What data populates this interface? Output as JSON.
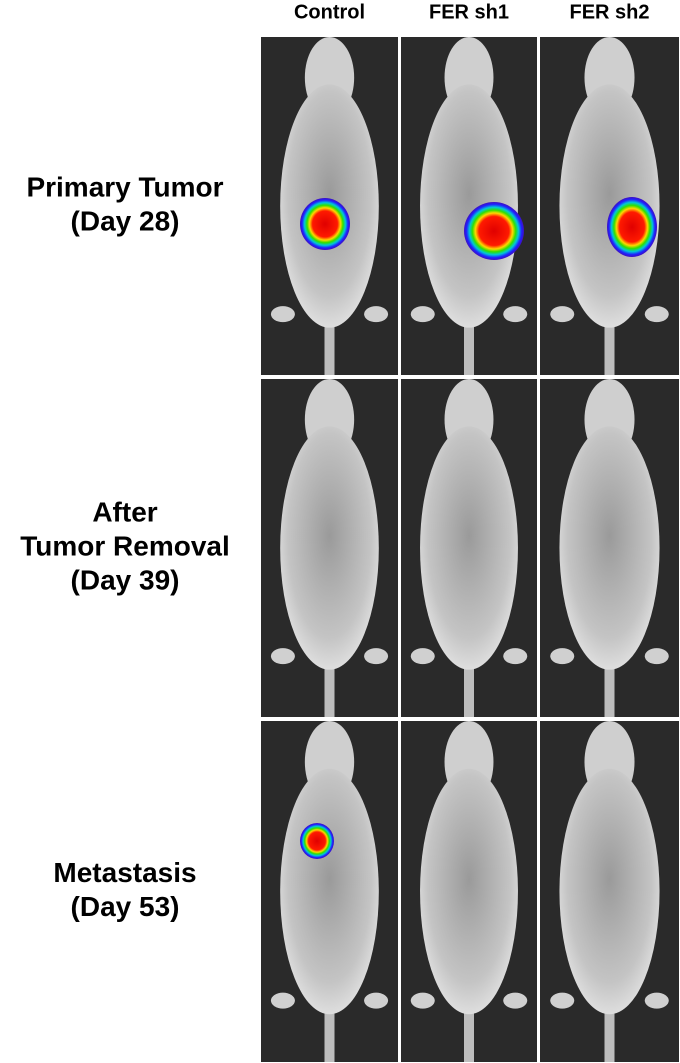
{
  "columns": [
    "Control",
    "FER sh1",
    "FER sh2"
  ],
  "rows": [
    {
      "label": [
        "Primary Tumor",
        "(Day 28)"
      ]
    },
    {
      "label": [
        "After",
        "Tumor Removal",
        "(Day 39)"
      ]
    },
    {
      "label": [
        "Metastasis",
        "(Day 53)"
      ]
    }
  ]
}
